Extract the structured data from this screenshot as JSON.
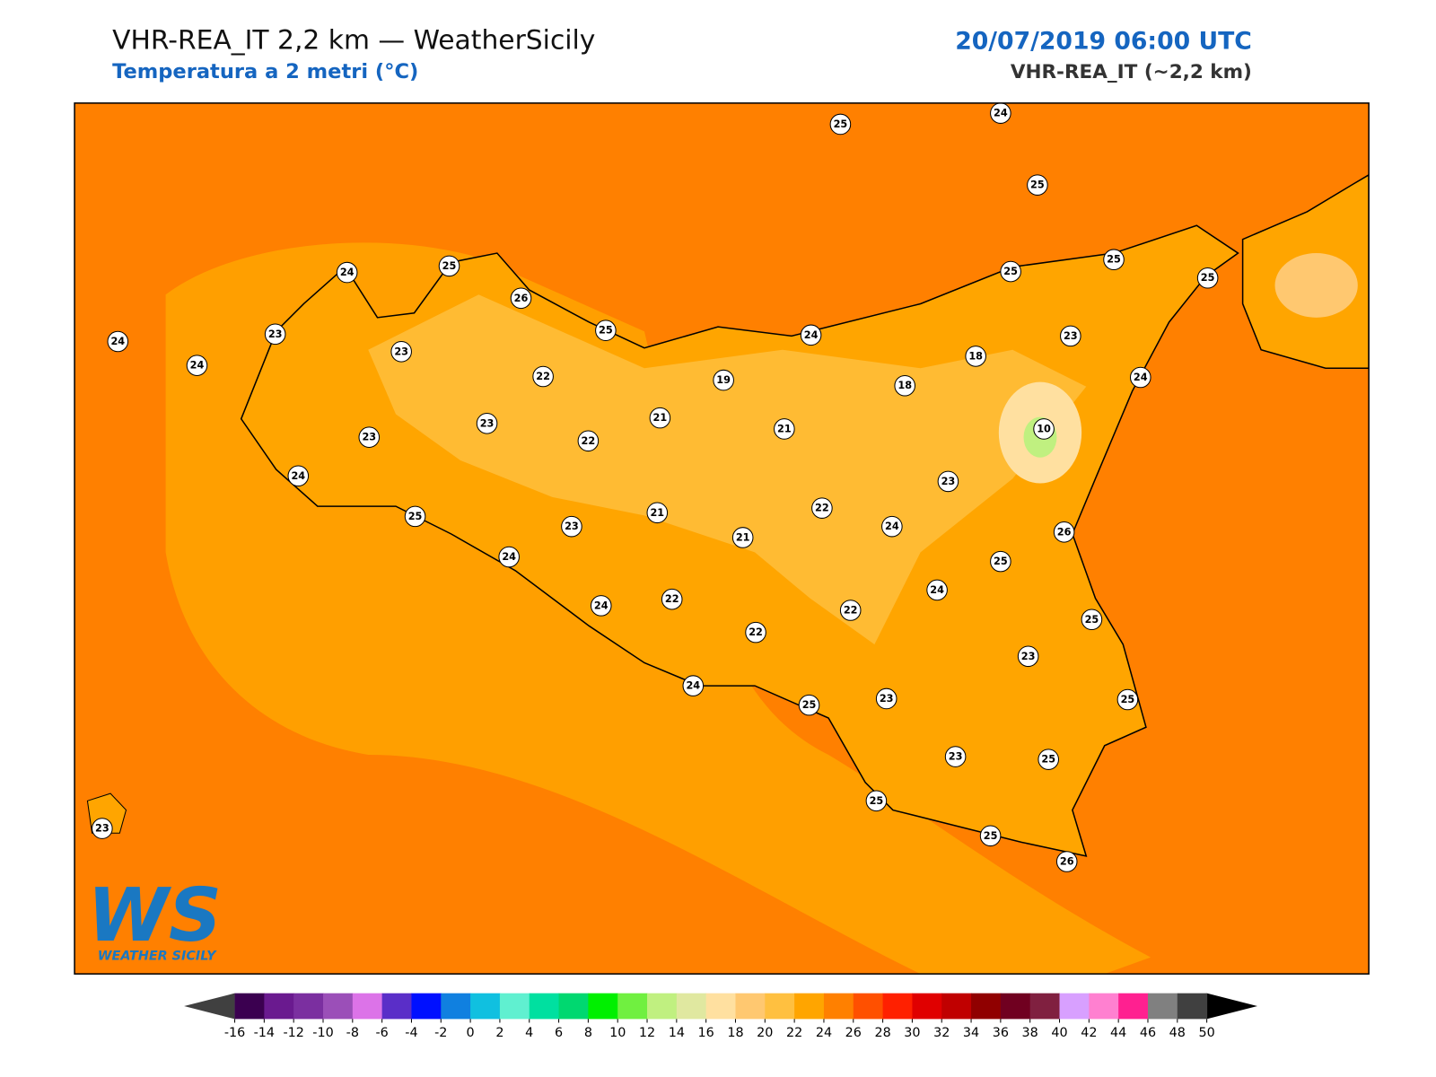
{
  "header": {
    "title": "VHR-REA_IT 2,2 km — WeatherSicily",
    "subtitle": "Temperatura a 2 metri (°C)",
    "date": "20/07/2019 06:00 UTC",
    "model": "VHR-REA_IT (~2,2 km)"
  },
  "map": {
    "stations": [
      24,
      24,
      23,
      24,
      25,
      26,
      23,
      25,
      22,
      23,
      23,
      24,
      22,
      21,
      19,
      21,
      24,
      25,
      24,
      25,
      25,
      25,
      25,
      23,
      18,
      18,
      24,
      10,
      23,
      26,
      22,
      24,
      25,
      23,
      21,
      21,
      24,
      25,
      24,
      24,
      22,
      22,
      22,
      25,
      23,
      24,
      25,
      23,
      25,
      23,
      25,
      25,
      25,
      26,
      23
    ]
  },
  "logo": {
    "mark": "WS",
    "text": "WEATHER SICILY"
  },
  "colorbar": {
    "ticks": [
      -16,
      -14,
      -12,
      -10,
      -8,
      -6,
      -4,
      -2,
      0,
      2,
      4,
      6,
      8,
      10,
      12,
      14,
      16,
      18,
      20,
      22,
      24,
      26,
      28,
      30,
      32,
      34,
      36,
      38,
      40,
      42,
      44,
      46,
      48,
      50
    ],
    "colors": [
      "#3b0050",
      "#6a1a8f",
      "#7b2fa0",
      "#9b4fb8",
      "#dc73e8",
      "#5a2ec8",
      "#0010ff",
      "#1080e0",
      "#10c0e0",
      "#60f0d0",
      "#00e0a0",
      "#00d870",
      "#00f000",
      "#70f040",
      "#c0f080",
      "#e0e8a0",
      "#ffe0a0",
      "#ffc870",
      "#ffc040",
      "#ffa500",
      "#ff8000",
      "#ff5000",
      "#ff2000",
      "#e00000",
      "#c00000",
      "#900000",
      "#700020",
      "#802040",
      "#d8a0ff",
      "#ff80d0",
      "#ff2090",
      "#808080",
      "#404040"
    ],
    "under_color": "#404040",
    "over_color": "#000000"
  }
}
